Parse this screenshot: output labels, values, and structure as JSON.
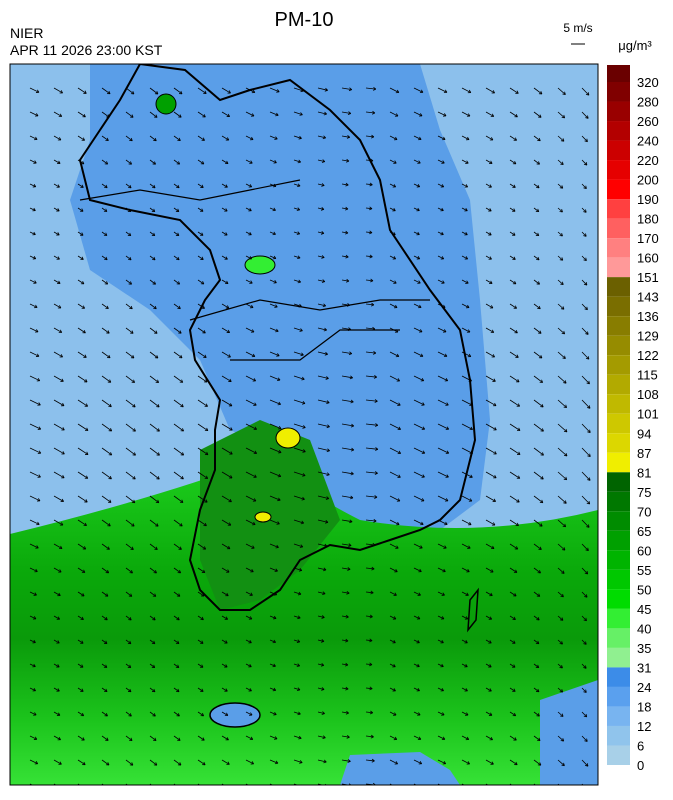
{
  "header": {
    "title": "PM-10",
    "agency": "NIER",
    "timestamp": "APR 11 2026 23:00 KST",
    "wind_scale": "5 m/s"
  },
  "colorbar": {
    "unit": "μg/m³",
    "labels": [
      "320",
      "280",
      "260",
      "240",
      "220",
      "200",
      "190",
      "180",
      "170",
      "160",
      "151",
      "143",
      "136",
      "129",
      "122",
      "115",
      "108",
      "101",
      "94",
      "87",
      "81",
      "75",
      "70",
      "65",
      "60",
      "55",
      "50",
      "45",
      "40",
      "35",
      "31",
      "24",
      "18",
      "12",
      "6",
      "0"
    ],
    "colors": [
      "#6a0000",
      "#800000",
      "#990000",
      "#b30000",
      "#cc0000",
      "#e60000",
      "#ff0000",
      "#ff4040",
      "#ff6060",
      "#ff8080",
      "#ff9999",
      "#6b6000",
      "#7a6e00",
      "#887d00",
      "#968c00",
      "#a49b00",
      "#b2aa00",
      "#c0b900",
      "#cec800",
      "#dcd700",
      "#f0ee00",
      "#006400",
      "#007800",
      "#008c00",
      "#00a000",
      "#00b400",
      "#00c800",
      "#00dc00",
      "#33ee33",
      "#66f066",
      "#90f090",
      "#3c8ce8",
      "#5aa0ee",
      "#78b4f0",
      "#90c4ec",
      "#a8d0e8"
    ]
  }
}
